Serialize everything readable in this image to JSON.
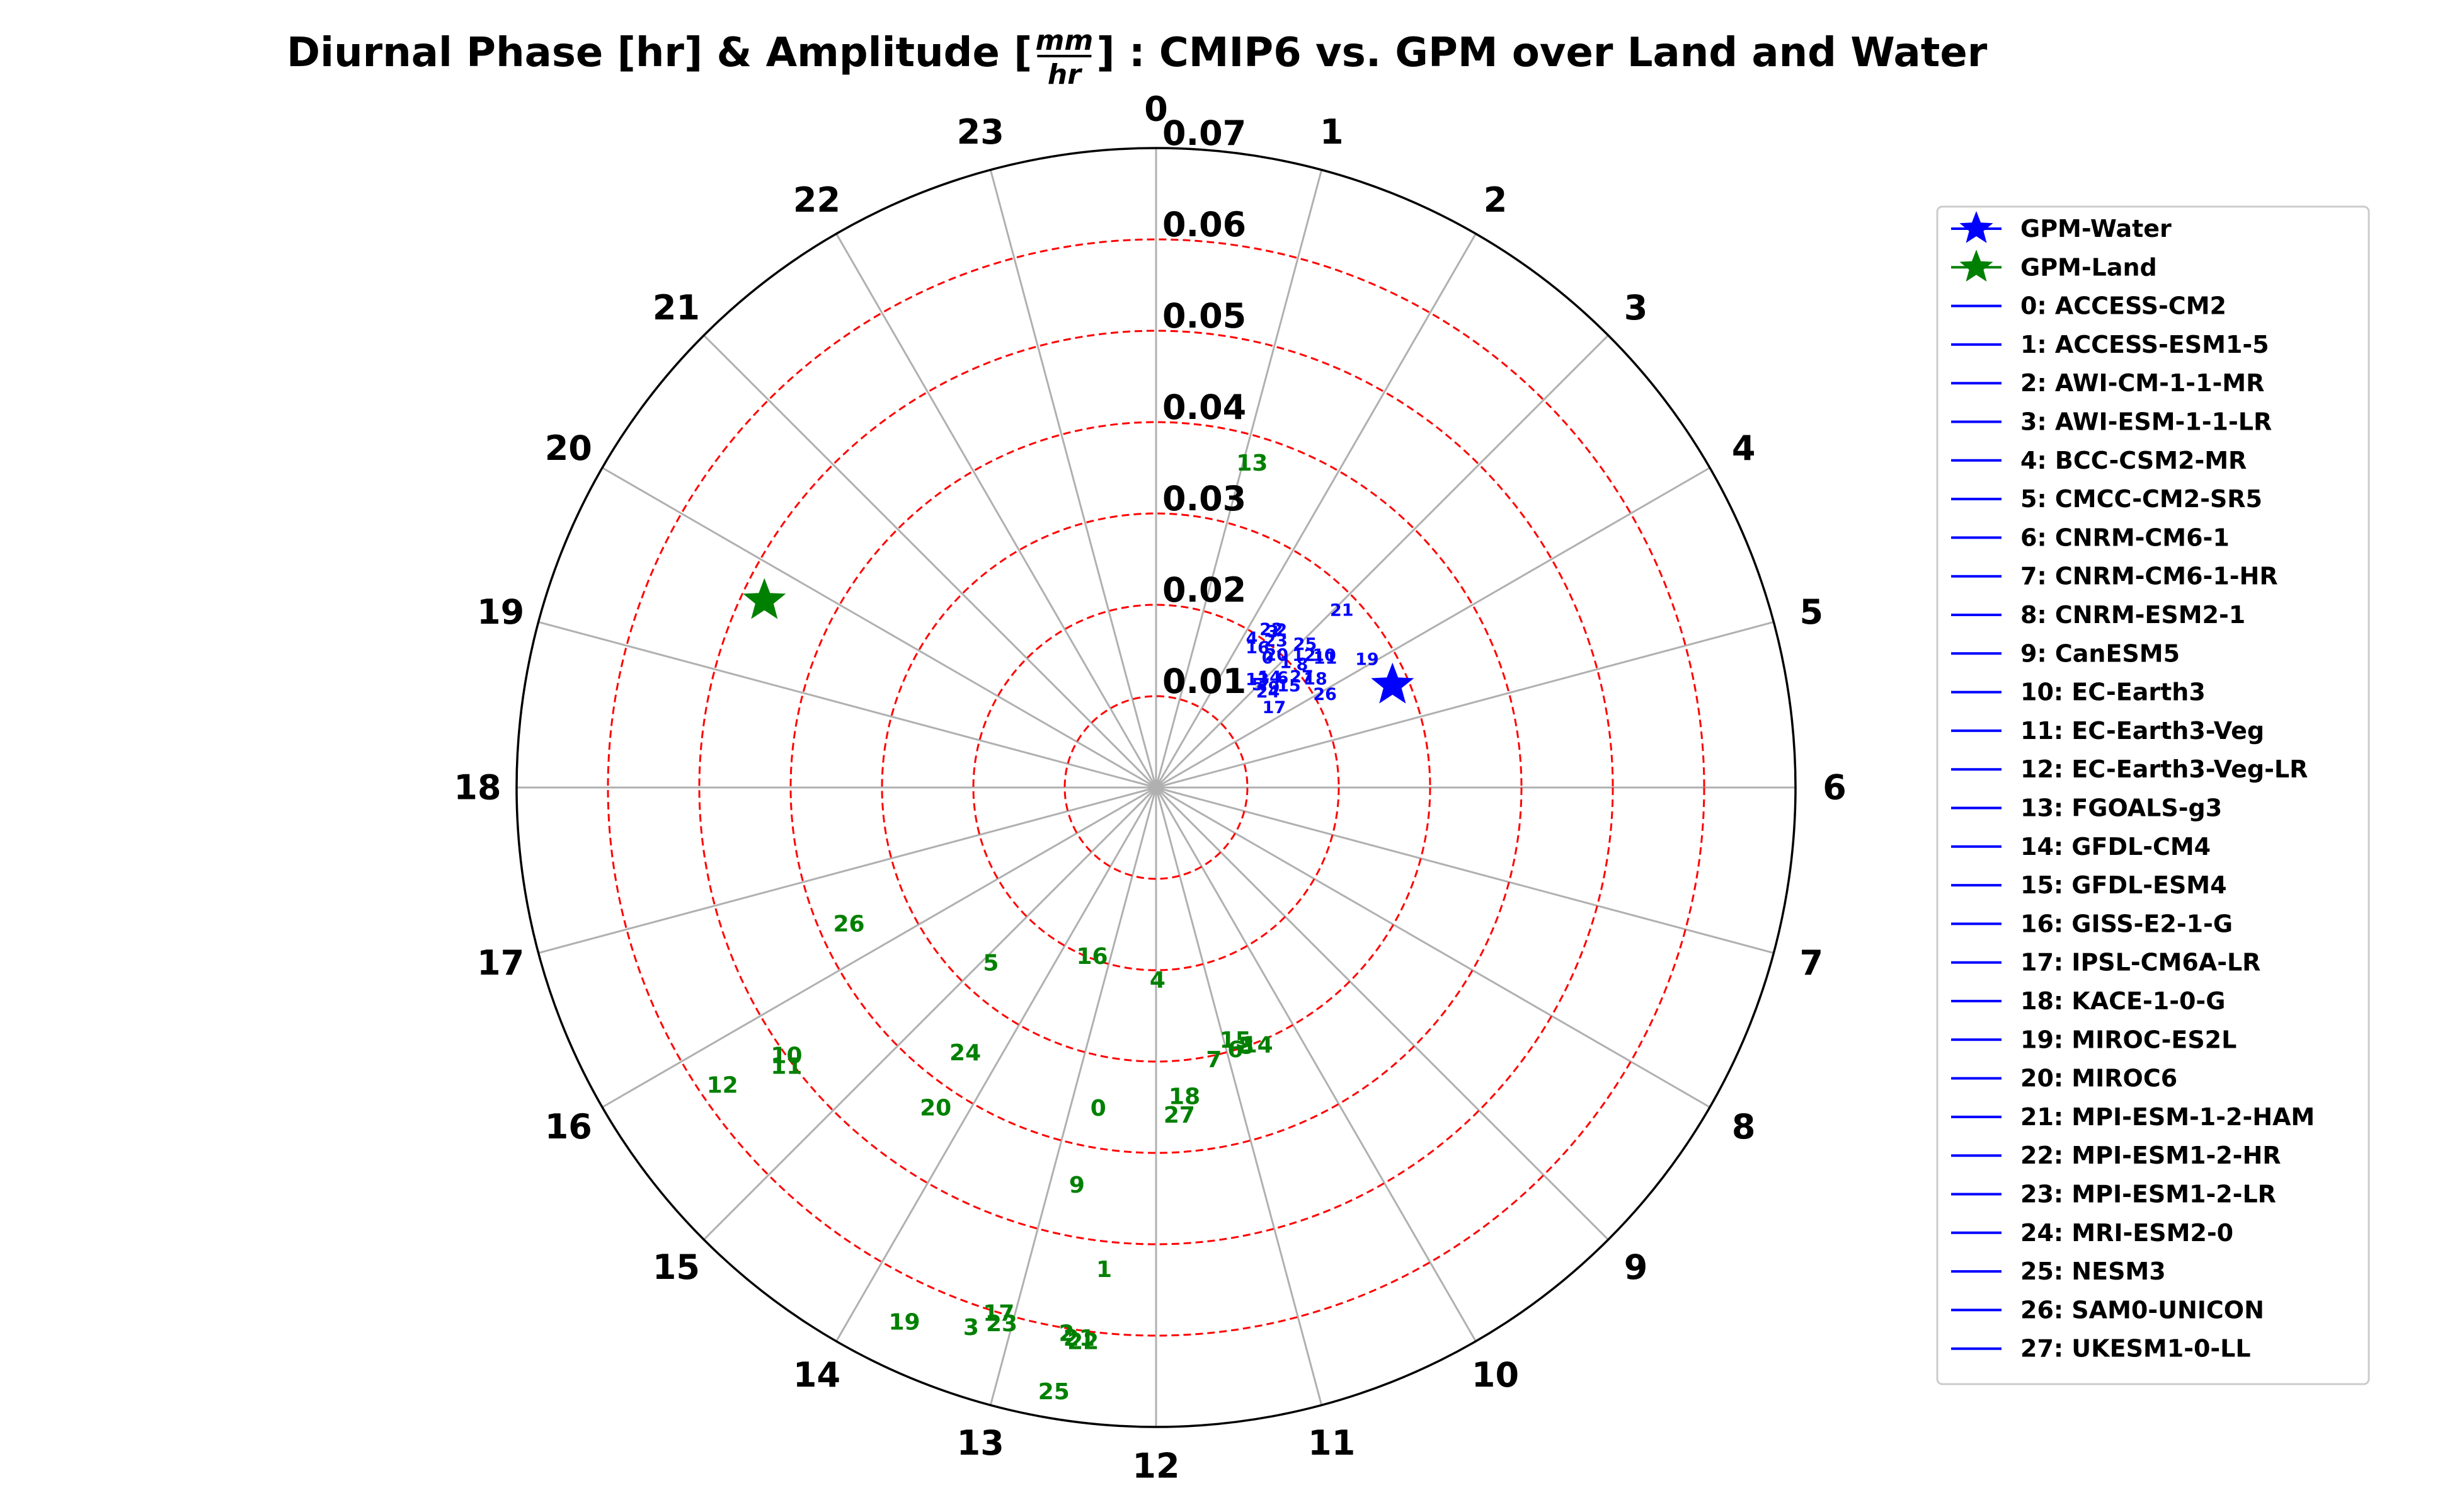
{
  "chart_data": {
    "type": "scatter",
    "projection": "polar",
    "title": {
      "prefix": "Diurnal Phase [hr] & Amplitude [",
      "frac_num": "mm",
      "frac_den": "hr",
      "suffix": "] : CMIP6 vs. GPM over Land and Water"
    },
    "theta_tick_labels": [
      "0",
      "1",
      "2",
      "3",
      "4",
      "5",
      "6",
      "7",
      "8",
      "9",
      "10",
      "11",
      "12",
      "13",
      "14",
      "15",
      "16",
      "17",
      "18",
      "19",
      "20",
      "21",
      "22",
      "23"
    ],
    "theta_direction": "clockwise",
    "theta_zero": "top",
    "rlim": [
      0,
      0.07
    ],
    "r_ticks": [
      0.01,
      0.02,
      0.03,
      0.04,
      0.05,
      0.06,
      0.07
    ],
    "r_tick_labels": [
      "0.01",
      "0.02",
      "0.03",
      "0.04",
      "0.05",
      "0.06",
      "0.07"
    ],
    "grid": true,
    "grid_ring_color": "#ff0000",
    "spoke_color": "#b0b0b0",
    "legend_position": "right",
    "legend": [
      {
        "label": "GPM-Water",
        "marker": "star",
        "color": "#0000ff"
      },
      {
        "label": "GPM-Land",
        "marker": "star",
        "color": "#008000"
      },
      {
        "label": "0: ACCESS-CM2",
        "marker": "line",
        "color": "#0000ff"
      },
      {
        "label": "1: ACCESS-ESM1-5",
        "marker": "line",
        "color": "#0000ff"
      },
      {
        "label": "2: AWI-CM-1-1-MR",
        "marker": "line",
        "color": "#0000ff"
      },
      {
        "label": "3: AWI-ESM-1-1-LR",
        "marker": "line",
        "color": "#0000ff"
      },
      {
        "label": "4: BCC-CSM2-MR",
        "marker": "line",
        "color": "#0000ff"
      },
      {
        "label": "5: CMCC-CM2-SR5",
        "marker": "line",
        "color": "#0000ff"
      },
      {
        "label": "6: CNRM-CM6-1",
        "marker": "line",
        "color": "#0000ff"
      },
      {
        "label": "7: CNRM-CM6-1-HR",
        "marker": "line",
        "color": "#0000ff"
      },
      {
        "label": "8: CNRM-ESM2-1",
        "marker": "line",
        "color": "#0000ff"
      },
      {
        "label": "9: CanESM5",
        "marker": "line",
        "color": "#0000ff"
      },
      {
        "label": "10: EC-Earth3",
        "marker": "line",
        "color": "#0000ff"
      },
      {
        "label": "11: EC-Earth3-Veg",
        "marker": "line",
        "color": "#0000ff"
      },
      {
        "label": "12: EC-Earth3-Veg-LR",
        "marker": "line",
        "color": "#0000ff"
      },
      {
        "label": "13: FGOALS-g3",
        "marker": "line",
        "color": "#0000ff"
      },
      {
        "label": "14: GFDL-CM4",
        "marker": "line",
        "color": "#0000ff"
      },
      {
        "label": "15: GFDL-ESM4",
        "marker": "line",
        "color": "#0000ff"
      },
      {
        "label": "16: GISS-E2-1-G",
        "marker": "line",
        "color": "#0000ff"
      },
      {
        "label": "17: IPSL-CM6A-LR",
        "marker": "line",
        "color": "#0000ff"
      },
      {
        "label": "18: KACE-1-0-G",
        "marker": "line",
        "color": "#0000ff"
      },
      {
        "label": "19: MIROC-ES2L",
        "marker": "line",
        "color": "#0000ff"
      },
      {
        "label": "20: MIROC6",
        "marker": "line",
        "color": "#0000ff"
      },
      {
        "label": "21: MPI-ESM-1-2-HAM",
        "marker": "line",
        "color": "#0000ff"
      },
      {
        "label": "22: MPI-ESM1-2-HR",
        "marker": "line",
        "color": "#0000ff"
      },
      {
        "label": "23: MPI-ESM1-2-LR",
        "marker": "line",
        "color": "#0000ff"
      },
      {
        "label": "24: MRI-ESM2-0",
        "marker": "line",
        "color": "#0000ff"
      },
      {
        "label": "25: NESM3",
        "marker": "line",
        "color": "#0000ff"
      },
      {
        "label": "26: SAM0-UNICON",
        "marker": "line",
        "color": "#0000ff"
      },
      {
        "label": "27: UKESM1-0-LL",
        "marker": "line",
        "color": "#0000ff"
      }
    ],
    "reference_points": [
      {
        "name": "GPM-Water",
        "phase_hr": 4.44,
        "amplitude": 0.0282,
        "color": "#0000ff"
      },
      {
        "name": "GPM-Land",
        "phase_hr": 19.7,
        "amplitude": 0.0475,
        "color": "#008000"
      }
    ],
    "series": [
      {
        "name": "Water",
        "color": "#0000ff",
        "points": [
          {
            "label": "0",
            "phase_hr": 2.72,
            "amplitude": 0.0187
          },
          {
            "label": "1",
            "phase_hr": 3.07,
            "amplitude": 0.0197
          },
          {
            "label": "2",
            "phase_hr": 2.57,
            "amplitude": 0.022
          },
          {
            "label": "3",
            "phase_hr": 2.46,
            "amplitude": 0.0213
          },
          {
            "label": "4",
            "phase_hr": 2.18,
            "amplitude": 0.0194
          },
          {
            "label": "5",
            "phase_hr": 2.98,
            "amplitude": 0.0158
          },
          {
            "label": "6",
            "phase_hr": 3.28,
            "amplitude": 0.0183
          },
          {
            "label": "7",
            "phase_hr": 3.1,
            "amplitude": 0.0163
          },
          {
            "label": "8",
            "phase_hr": 3.33,
            "amplitude": 0.0209
          },
          {
            "label": "9",
            "phase_hr": 3.32,
            "amplitude": 0.0169
          },
          {
            "label": "10",
            "phase_hr": 3.46,
            "amplitude": 0.0234
          },
          {
            "label": "11",
            "phase_hr": 3.51,
            "amplitude": 0.0233
          },
          {
            "label": "12",
            "phase_hr": 3.22,
            "amplitude": 0.0217
          },
          {
            "label": "13",
            "phase_hr": 2.88,
            "amplitude": 0.0162
          },
          {
            "label": "14",
            "phase_hr": 3.06,
            "amplitude": 0.0173
          },
          {
            "label": "15",
            "phase_hr": 3.51,
            "amplitude": 0.0183
          },
          {
            "label": "16",
            "phase_hr": 2.4,
            "amplitude": 0.0189
          },
          {
            "label": "17",
            "phase_hr": 3.73,
            "amplitude": 0.0156
          },
          {
            "label": "18",
            "phase_hr": 3.72,
            "amplitude": 0.0211
          },
          {
            "label": "19",
            "phase_hr": 3.92,
            "amplitude": 0.027
          },
          {
            "label": "20",
            "phase_hr": 2.82,
            "amplitude": 0.0196
          },
          {
            "label": "21",
            "phase_hr": 3.09,
            "amplitude": 0.0281
          },
          {
            "label": "22",
            "phase_hr": 2.41,
            "amplitude": 0.0214
          },
          {
            "label": "23",
            "phase_hr": 2.62,
            "amplitude": 0.0207
          },
          {
            "label": "24",
            "phase_hr": 3.3,
            "amplitude": 0.0161
          },
          {
            "label": "25",
            "phase_hr": 3.08,
            "amplitude": 0.0226
          },
          {
            "label": "26",
            "phase_hr": 4.08,
            "amplitude": 0.0211
          },
          {
            "label": "27",
            "phase_hr": 3.52,
            "amplitude": 0.02
          }
        ]
      },
      {
        "name": "Land",
        "color": "#008000",
        "points": [
          {
            "label": "0",
            "phase_hr": 12.68,
            "amplitude": 0.0357
          },
          {
            "label": "1",
            "phase_hr": 12.41,
            "amplitude": 0.0531
          },
          {
            "label": "2",
            "phase_hr": 12.62,
            "amplitude": 0.0606
          },
          {
            "label": "3",
            "phase_hr": 13.26,
            "amplitude": 0.0625
          },
          {
            "label": "4",
            "phase_hr": 11.97,
            "amplitude": 0.0211
          },
          {
            "label": "5",
            "phase_hr": 14.88,
            "amplitude": 0.0264
          },
          {
            "label": "6",
            "phase_hr": 10.88,
            "amplitude": 0.03
          },
          {
            "label": "7",
            "phase_hr": 11.2,
            "amplitude": 0.0305
          },
          {
            "label": "8",
            "phase_hr": 10.72,
            "amplitude": 0.03
          },
          {
            "label": "9",
            "phase_hr": 12.75,
            "amplitude": 0.0444
          },
          {
            "label": "10",
            "phase_hr": 15.6,
            "amplitude": 0.05
          },
          {
            "label": "11",
            "phase_hr": 15.53,
            "amplitude": 0.0507
          },
          {
            "label": "12",
            "phase_hr": 15.7,
            "amplitude": 0.0576
          },
          {
            "label": "13",
            "phase_hr": 1.1,
            "amplitude": 0.037
          },
          {
            "label": "14",
            "phase_hr": 10.57,
            "amplitude": 0.0303
          },
          {
            "label": "15",
            "phase_hr": 10.84,
            "amplitude": 0.029
          },
          {
            "label": "16",
            "phase_hr": 13.38,
            "amplitude": 0.0198
          },
          {
            "label": "17",
            "phase_hr": 13.11,
            "amplitude": 0.0601
          },
          {
            "label": "18",
            "phase_hr": 11.65,
            "amplitude": 0.034
          },
          {
            "label": "19",
            "phase_hr": 13.68,
            "amplitude": 0.0647
          },
          {
            "label": "20",
            "phase_hr": 14.3,
            "amplitude": 0.0426
          },
          {
            "label": "21",
            "phase_hr": 12.53,
            "amplitude": 0.0609
          },
          {
            "label": "22",
            "phase_hr": 12.5,
            "amplitude": 0.0612
          },
          {
            "label": "23",
            "phase_hr": 13.07,
            "amplitude": 0.0611
          },
          {
            "label": "24",
            "phase_hr": 14.38,
            "amplitude": 0.0358
          },
          {
            "label": "25",
            "phase_hr": 12.64,
            "amplitude": 0.0671
          },
          {
            "label": "26",
            "phase_hr": 16.4,
            "amplitude": 0.0368
          },
          {
            "label": "27",
            "phase_hr": 11.73,
            "amplitude": 0.036
          }
        ]
      }
    ]
  }
}
